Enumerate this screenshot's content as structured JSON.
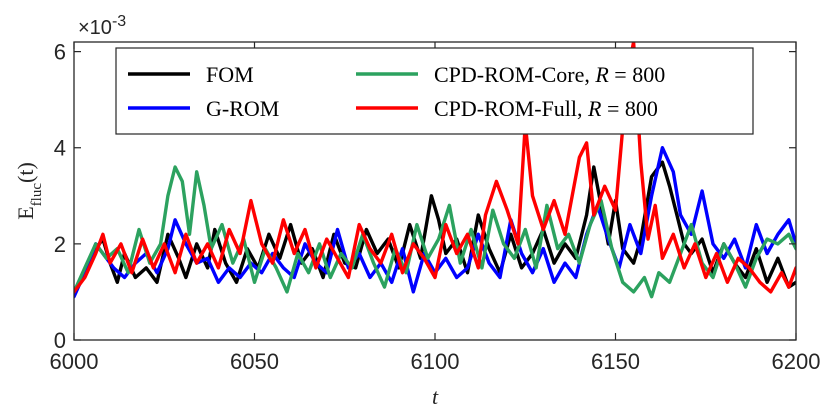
{
  "chart_data": {
    "type": "line",
    "title": "",
    "xlabel": "t",
    "ylabel_main": "E",
    "ylabel_sub": "fluc",
    "ylabel_arg": "(t)",
    "y_exponent_label": "×10",
    "y_exponent_power": "-3",
    "xlim": [
      6000,
      6200
    ],
    "ylim": [
      0,
      6.2
    ],
    "xticks": [
      6000,
      6050,
      6100,
      6150,
      6200
    ],
    "yticks": [
      0,
      2,
      4,
      6
    ],
    "xtick_labels": [
      "6000",
      "6050",
      "6100",
      "6150",
      "6200"
    ],
    "ytick_labels": [
      "0",
      "2",
      "4",
      "6"
    ],
    "grid": false,
    "legend_position": "top",
    "series": [
      {
        "name": "FOM",
        "color": "#000000",
        "x": [
          6000,
          6003,
          6006,
          6008,
          6010,
          6012,
          6014,
          6017,
          6020,
          6023,
          6026,
          6029,
          6031,
          6034,
          6037,
          6039,
          6042,
          6045,
          6048,
          6051,
          6054,
          6057,
          6060,
          6063,
          6066,
          6069,
          6072,
          6075,
          6078,
          6081,
          6084,
          6087,
          6090,
          6093,
          6096,
          6099,
          6101,
          6103,
          6106,
          6109,
          6112,
          6115,
          6118,
          6121,
          6124,
          6127,
          6130,
          6133,
          6136,
          6139,
          6142,
          6144,
          6146,
          6148,
          6150,
          6152,
          6155,
          6157,
          6160,
          6163,
          6165,
          6167,
          6169,
          6171,
          6174,
          6177,
          6180,
          6183,
          6186,
          6189,
          6192,
          6195,
          6198,
          6200
        ],
        "y": [
          1.0,
          1.4,
          1.9,
          2.1,
          1.6,
          1.2,
          1.8,
          1.3,
          1.5,
          1.2,
          2.2,
          1.7,
          1.3,
          2.0,
          1.5,
          2.3,
          1.6,
          1.2,
          1.9,
          1.5,
          2.2,
          1.7,
          2.4,
          1.6,
          1.9,
          1.3,
          2.2,
          1.6,
          1.5,
          2.3,
          1.8,
          2.1,
          1.5,
          2.4,
          1.7,
          3.0,
          2.5,
          1.8,
          2.1,
          1.4,
          2.6,
          1.9,
          1.4,
          2.2,
          1.5,
          1.8,
          2.3,
          1.6,
          2.0,
          1.7,
          2.6,
          3.6,
          2.8,
          2.0,
          2.9,
          1.9,
          1.6,
          2.1,
          3.4,
          3.7,
          3.2,
          2.6,
          2.0,
          1.8,
          2.1,
          1.4,
          2.0,
          1.6,
          1.3,
          1.9,
          1.2,
          1.7,
          1.1,
          1.2
        ]
      },
      {
        "name": "G-ROM",
        "color": "#0000ff",
        "x": [
          6000,
          6003,
          6006,
          6008,
          6011,
          6014,
          6017,
          6020,
          6023,
          6026,
          6028,
          6031,
          6034,
          6037,
          6040,
          6043,
          6046,
          6049,
          6052,
          6055,
          6058,
          6061,
          6064,
          6067,
          6070,
          6073,
          6076,
          6079,
          6082,
          6085,
          6088,
          6091,
          6094,
          6097,
          6100,
          6103,
          6106,
          6109,
          6112,
          6115,
          6118,
          6121,
          6124,
          6127,
          6130,
          6133,
          6136,
          6139,
          6142,
          6145,
          6148,
          6151,
          6154,
          6157,
          6160,
          6163,
          6166,
          6168,
          6171,
          6174,
          6177,
          6180,
          6183,
          6186,
          6189,
          6192,
          6195,
          6198,
          6200
        ],
        "y": [
          0.9,
          1.4,
          2.0,
          1.8,
          1.5,
          1.3,
          1.6,
          1.8,
          1.4,
          1.9,
          2.5,
          2.0,
          1.6,
          1.7,
          1.2,
          1.5,
          1.3,
          1.6,
          1.4,
          1.8,
          1.5,
          1.3,
          2.0,
          1.6,
          1.4,
          2.3,
          1.5,
          1.8,
          1.3,
          1.6,
          1.2,
          1.9,
          1.0,
          1.8,
          1.4,
          1.7,
          1.3,
          1.5,
          2.2,
          1.6,
          1.3,
          2.5,
          1.8,
          1.4,
          1.9,
          1.2,
          1.6,
          1.3,
          2.2,
          2.8,
          2.1,
          1.5,
          2.4,
          1.8,
          3.0,
          4.0,
          3.5,
          2.6,
          2.2,
          3.1,
          2.0,
          1.7,
          2.1,
          1.5,
          2.4,
          1.8,
          2.2,
          2.5,
          2.0
        ]
      },
      {
        "name": "CPD-ROM-Core, R = 800",
        "color": "#2ca25f",
        "x": [
          6000,
          6003,
          6006,
          6009,
          6012,
          6015,
          6018,
          6021,
          6024,
          6026,
          6028,
          6030,
          6032,
          6034,
          6036,
          6038,
          6041,
          6044,
          6047,
          6050,
          6053,
          6056,
          6059,
          6062,
          6065,
          6068,
          6071,
          6074,
          6077,
          6080,
          6083,
          6086,
          6089,
          6092,
          6095,
          6098,
          6101,
          6104,
          6107,
          6110,
          6113,
          6116,
          6119,
          6122,
          6125,
          6128,
          6131,
          6134,
          6137,
          6140,
          6143,
          6146,
          6149,
          6152,
          6155,
          6158,
          6160,
          6162,
          6165,
          6168,
          6171,
          6174,
          6177,
          6180,
          6183,
          6186,
          6189,
          6192,
          6195,
          6198,
          6200
        ],
        "y": [
          1.0,
          1.5,
          2.0,
          1.7,
          1.9,
          1.4,
          2.3,
          1.6,
          2.0,
          3.0,
          3.6,
          3.3,
          2.2,
          3.5,
          2.8,
          1.9,
          2.4,
          1.6,
          2.1,
          1.2,
          1.9,
          1.5,
          1.0,
          1.8,
          1.4,
          2.0,
          1.3,
          1.8,
          1.5,
          2.2,
          1.6,
          1.1,
          1.9,
          1.4,
          2.4,
          1.7,
          2.1,
          2.8,
          1.6,
          2.3,
          1.5,
          2.7,
          2.0,
          1.7,
          2.3,
          1.5,
          2.8,
          1.9,
          2.2,
          1.6,
          2.4,
          2.9,
          1.9,
          1.2,
          1.0,
          1.3,
          0.9,
          1.4,
          1.2,
          1.8,
          2.4,
          1.6,
          1.3,
          2.0,
          1.6,
          1.1,
          1.7,
          2.1,
          2.0,
          2.2,
          1.9
        ]
      },
      {
        "name": "CPD-ROM-Full, R = 800",
        "color": "#ff0000",
        "x": [
          6000,
          6003,
          6006,
          6008,
          6010,
          6013,
          6016,
          6019,
          6022,
          6025,
          6028,
          6031,
          6034,
          6037,
          6040,
          6043,
          6046,
          6049,
          6052,
          6055,
          6058,
          6061,
          6064,
          6067,
          6070,
          6073,
          6076,
          6079,
          6082,
          6085,
          6088,
          6091,
          6094,
          6097,
          6100,
          6103,
          6106,
          6109,
          6112,
          6114,
          6117,
          6120,
          6123,
          6125,
          6127,
          6130,
          6133,
          6136,
          6138,
          6140,
          6142,
          6144,
          6147,
          6150,
          6152,
          6154,
          6155,
          6157,
          6159,
          6161,
          6163,
          6166,
          6169,
          6172,
          6175,
          6178,
          6181,
          6184,
          6187,
          6190,
          6193,
          6196,
          6198,
          6200
        ],
        "y": [
          1.0,
          1.3,
          1.8,
          2.2,
          1.6,
          2.0,
          1.4,
          2.1,
          1.5,
          2.0,
          1.4,
          2.2,
          1.6,
          2.0,
          1.5,
          2.3,
          1.8,
          2.9,
          2.0,
          1.6,
          2.5,
          1.8,
          2.3,
          1.5,
          2.1,
          1.7,
          1.3,
          2.4,
          1.9,
          1.6,
          2.2,
          1.4,
          2.0,
          1.7,
          1.3,
          2.4,
          1.8,
          2.2,
          1.5,
          2.6,
          3.3,
          2.7,
          2.0,
          4.5,
          3.0,
          2.3,
          2.9,
          2.2,
          3.0,
          3.8,
          4.1,
          2.6,
          3.2,
          2.7,
          4.4,
          5.8,
          6.2,
          3.7,
          2.1,
          2.8,
          1.7,
          2.2,
          1.5,
          2.0,
          1.3,
          1.8,
          1.2,
          1.7,
          1.5,
          1.2,
          1.0,
          1.4,
          1.1,
          1.5
        ]
      }
    ]
  }
}
